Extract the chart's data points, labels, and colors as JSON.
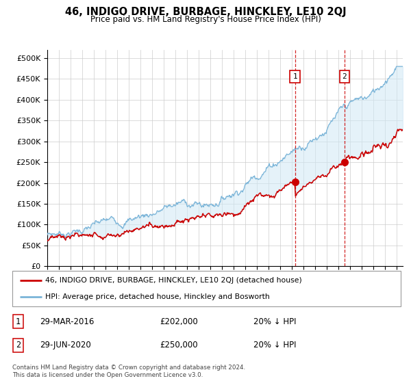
{
  "title": "46, INDIGO DRIVE, BURBAGE, HINCKLEY, LE10 2QJ",
  "subtitle": "Price paid vs. HM Land Registry's House Price Index (HPI)",
  "legend_line1": "46, INDIGO DRIVE, BURBAGE, HINCKLEY, LE10 2QJ (detached house)",
  "legend_line2": "HPI: Average price, detached house, Hinckley and Bosworth",
  "footer": "Contains HM Land Registry data © Crown copyright and database right 2024.\nThis data is licensed under the Open Government Licence v3.0.",
  "transaction1_date": "29-MAR-2016",
  "transaction1_price": "£202,000",
  "transaction1_hpi": "20% ↓ HPI",
  "transaction2_date": "29-JUN-2020",
  "transaction2_price": "£250,000",
  "transaction2_hpi": "20% ↓ HPI",
  "hpi_color": "#7ab4d8",
  "price_color": "#cc0000",
  "marker1_x": 2016.25,
  "marker1_y": 202000,
  "marker2_x": 2020.5,
  "marker2_y": 250000,
  "vline1_x": 2016.25,
  "vline2_x": 2020.5,
  "ylim": [
    0,
    520000
  ],
  "xlim_start": 1995,
  "xlim_end": 2025.5,
  "n_points": 720
}
